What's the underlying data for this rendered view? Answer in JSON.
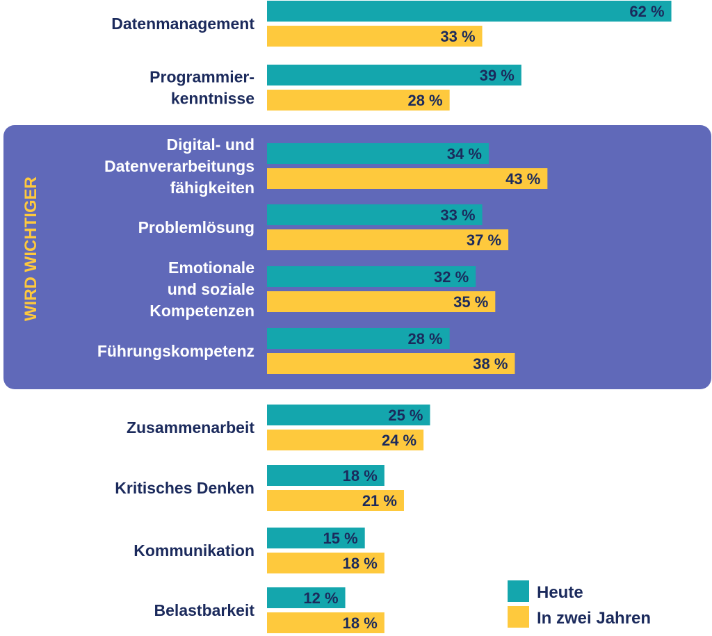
{
  "chart_data": {
    "type": "bar",
    "orientation": "horizontal",
    "categories": [
      [
        "Datenmanagement"
      ],
      [
        "Programmier-",
        "kenntnisse"
      ],
      [
        "Digital- und",
        "Datenverarbeitungs",
        "fähigkeiten"
      ],
      [
        "Problemlösung"
      ],
      [
        "Emotionale",
        "und soziale",
        "Kompetenzen"
      ],
      [
        "Führungskompetenz"
      ],
      [
        "Zusammenarbeit"
      ],
      [
        "Kritisches Denken"
      ],
      [
        "Kommunikation"
      ],
      [
        "Belastbarkeit"
      ]
    ],
    "series": [
      {
        "name": "Heute",
        "color": "#14a6ad",
        "values": [
          62,
          39,
          34,
          33,
          32,
          28,
          25,
          18,
          15,
          12
        ]
      },
      {
        "name": "In zwei Jahren",
        "color": "#fec93d",
        "values": [
          33,
          28,
          43,
          37,
          35,
          38,
          24,
          21,
          18,
          18
        ]
      }
    ],
    "value_suffix": " %",
    "highlight": {
      "label": "WIRD WICHTIGER",
      "categories_index_range": [
        2,
        5
      ],
      "color": "#6069b9",
      "label_color": "#fec93d"
    },
    "legend": {
      "placement": "bottom-right",
      "entries": [
        "Heute",
        "In zwei Jahren"
      ]
    },
    "xlim": [
      0,
      62
    ],
    "grid": false,
    "title": "",
    "xlabel": "",
    "ylabel": ""
  },
  "colors": {
    "text": "#1b2a5c",
    "highlight_text": "#ffffff"
  }
}
